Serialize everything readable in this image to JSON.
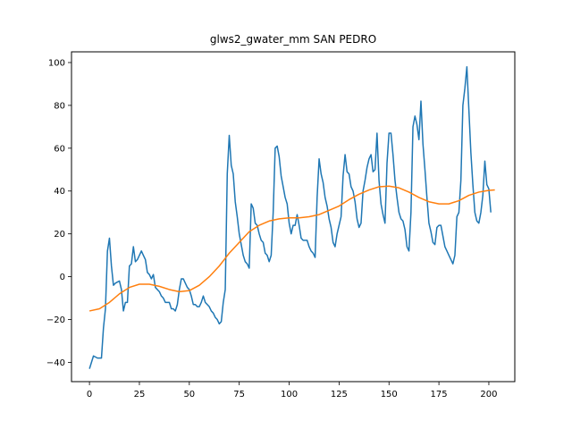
{
  "chart_data": {
    "type": "line",
    "title": "glws2_gwater_mm SAN PEDRO",
    "xlabel": "",
    "ylabel": "",
    "xlim": [
      -9,
      213
    ],
    "ylim": [
      -49,
      105
    ],
    "x_ticks": [
      0,
      25,
      50,
      75,
      100,
      125,
      150,
      175,
      200
    ],
    "y_ticks": [
      -40,
      -20,
      0,
      20,
      40,
      60,
      80,
      100
    ],
    "grid": false,
    "series": [
      {
        "color": "#1f77b4",
        "points": [
          [
            0,
            -43
          ],
          [
            2,
            -37
          ],
          [
            4,
            -38
          ],
          [
            6,
            -38
          ],
          [
            7,
            -24
          ],
          [
            8,
            -15
          ],
          [
            9,
            12
          ],
          [
            10,
            18
          ],
          [
            11,
            5
          ],
          [
            12,
            -4
          ],
          [
            13,
            -3
          ],
          [
            14,
            -2.5
          ],
          [
            15,
            -2
          ],
          [
            16,
            -6
          ],
          [
            17,
            -16
          ],
          [
            18,
            -12
          ],
          [
            19,
            -12
          ],
          [
            20,
            5
          ],
          [
            21,
            6
          ],
          [
            22,
            14
          ],
          [
            23,
            7
          ],
          [
            24,
            8
          ],
          [
            25,
            10
          ],
          [
            26,
            12
          ],
          [
            27,
            10
          ],
          [
            28,
            8
          ],
          [
            29,
            2
          ],
          [
            30,
            1
          ],
          [
            31,
            -1
          ],
          [
            32,
            1
          ],
          [
            33,
            -5
          ],
          [
            34,
            -6
          ],
          [
            35,
            -7
          ],
          [
            36,
            -9
          ],
          [
            37,
            -10
          ],
          [
            38,
            -12
          ],
          [
            39,
            -12
          ],
          [
            40,
            -12
          ],
          [
            41,
            -15
          ],
          [
            42,
            -15
          ],
          [
            43,
            -16
          ],
          [
            44,
            -13
          ],
          [
            45,
            -6
          ],
          [
            46,
            -1
          ],
          [
            47,
            -1
          ],
          [
            48,
            -3
          ],
          [
            49,
            -5
          ],
          [
            50,
            -6
          ],
          [
            51,
            -9
          ],
          [
            52,
            -13
          ],
          [
            53,
            -13
          ],
          [
            54,
            -14
          ],
          [
            55,
            -14
          ],
          [
            56,
            -12
          ],
          [
            57,
            -9
          ],
          [
            58,
            -12
          ],
          [
            59,
            -13
          ],
          [
            60,
            -14
          ],
          [
            61,
            -16
          ],
          [
            62,
            -17
          ],
          [
            63,
            -19
          ],
          [
            64,
            -20
          ],
          [
            65,
            -22
          ],
          [
            66,
            -21
          ],
          [
            67,
            -12
          ],
          [
            68,
            -6
          ],
          [
            69,
            48
          ],
          [
            70,
            66
          ],
          [
            71,
            52
          ],
          [
            72,
            48
          ],
          [
            73,
            35
          ],
          [
            74,
            28
          ],
          [
            75,
            20
          ],
          [
            76,
            15
          ],
          [
            77,
            10
          ],
          [
            78,
            7
          ],
          [
            79,
            6
          ],
          [
            80,
            4
          ],
          [
            81,
            34
          ],
          [
            82,
            32
          ],
          [
            83,
            25
          ],
          [
            84,
            24
          ],
          [
            85,
            20
          ],
          [
            86,
            17
          ],
          [
            87,
            16
          ],
          [
            88,
            11
          ],
          [
            89,
            10
          ],
          [
            90,
            7
          ],
          [
            91,
            10
          ],
          [
            92,
            30
          ],
          [
            93,
            60
          ],
          [
            94,
            61
          ],
          [
            95,
            56
          ],
          [
            96,
            47
          ],
          [
            97,
            42
          ],
          [
            98,
            37
          ],
          [
            99,
            34
          ],
          [
            100,
            25
          ],
          [
            101,
            20
          ],
          [
            102,
            24
          ],
          [
            103,
            24
          ],
          [
            104,
            29
          ],
          [
            105,
            24
          ],
          [
            106,
            18
          ],
          [
            107,
            17
          ],
          [
            108,
            17
          ],
          [
            109,
            17
          ],
          [
            110,
            14
          ],
          [
            111,
            12
          ],
          [
            112,
            11
          ],
          [
            113,
            9
          ],
          [
            114,
            37
          ],
          [
            115,
            55
          ],
          [
            116,
            48
          ],
          [
            117,
            44
          ],
          [
            118,
            37
          ],
          [
            119,
            33
          ],
          [
            120,
            27
          ],
          [
            121,
            23
          ],
          [
            122,
            16
          ],
          [
            123,
            14
          ],
          [
            124,
            20
          ],
          [
            125,
            24
          ],
          [
            126,
            28
          ],
          [
            127,
            47
          ],
          [
            128,
            57
          ],
          [
            129,
            49
          ],
          [
            130,
            48
          ],
          [
            131,
            42
          ],
          [
            132,
            40
          ],
          [
            133,
            35
          ],
          [
            134,
            27
          ],
          [
            135,
            23
          ],
          [
            136,
            25
          ],
          [
            137,
            40
          ],
          [
            138,
            45
          ],
          [
            139,
            51
          ],
          [
            140,
            55
          ],
          [
            141,
            57
          ],
          [
            142,
            49
          ],
          [
            143,
            50
          ],
          [
            144,
            67
          ],
          [
            145,
            45
          ],
          [
            146,
            34
          ],
          [
            147,
            29
          ],
          [
            148,
            25
          ],
          [
            149,
            53
          ],
          [
            150,
            67
          ],
          [
            151,
            67
          ],
          [
            152,
            57
          ],
          [
            153,
            45
          ],
          [
            154,
            37
          ],
          [
            155,
            30
          ],
          [
            156,
            27
          ],
          [
            157,
            26
          ],
          [
            158,
            22
          ],
          [
            159,
            14
          ],
          [
            160,
            12
          ],
          [
            161,
            30
          ],
          [
            162,
            70
          ],
          [
            163,
            75
          ],
          [
            164,
            71
          ],
          [
            165,
            64
          ],
          [
            166,
            82
          ],
          [
            167,
            62
          ],
          [
            168,
            50
          ],
          [
            169,
            37
          ],
          [
            170,
            25
          ],
          [
            171,
            21
          ],
          [
            172,
            16
          ],
          [
            173,
            15
          ],
          [
            174,
            23
          ],
          [
            175,
            24
          ],
          [
            176,
            24
          ],
          [
            177,
            19
          ],
          [
            178,
            14
          ],
          [
            179,
            12
          ],
          [
            180,
            10
          ],
          [
            181,
            8
          ],
          [
            182,
            6
          ],
          [
            183,
            10
          ],
          [
            184,
            28
          ],
          [
            185,
            30
          ],
          [
            186,
            45
          ],
          [
            187,
            80
          ],
          [
            188,
            88
          ],
          [
            189,
            98
          ],
          [
            190,
            78
          ],
          [
            191,
            58
          ],
          [
            192,
            43
          ],
          [
            193,
            30
          ],
          [
            194,
            26
          ],
          [
            195,
            25
          ],
          [
            196,
            30
          ],
          [
            197,
            38
          ],
          [
            198,
            54
          ],
          [
            199,
            43
          ],
          [
            200,
            41
          ],
          [
            201,
            30
          ]
        ]
      },
      {
        "color": "#ff7f0e",
        "points": [
          [
            0,
            -16
          ],
          [
            5,
            -15
          ],
          [
            10,
            -12
          ],
          [
            15,
            -8
          ],
          [
            20,
            -5
          ],
          [
            25,
            -3.5
          ],
          [
            30,
            -3.5
          ],
          [
            35,
            -4.5
          ],
          [
            40,
            -6
          ],
          [
            45,
            -7
          ],
          [
            50,
            -6.5
          ],
          [
            55,
            -4
          ],
          [
            60,
            0
          ],
          [
            65,
            5
          ],
          [
            70,
            11
          ],
          [
            75,
            16
          ],
          [
            80,
            21
          ],
          [
            85,
            24
          ],
          [
            90,
            26
          ],
          [
            95,
            27
          ],
          [
            100,
            27.5
          ],
          [
            105,
            27.5
          ],
          [
            110,
            28
          ],
          [
            115,
            29
          ],
          [
            120,
            31
          ],
          [
            125,
            33
          ],
          [
            130,
            36
          ],
          [
            135,
            38.5
          ],
          [
            140,
            40.5
          ],
          [
            145,
            42
          ],
          [
            150,
            42.3
          ],
          [
            155,
            41.5
          ],
          [
            160,
            39.5
          ],
          [
            165,
            37
          ],
          [
            170,
            35
          ],
          [
            175,
            34
          ],
          [
            180,
            34
          ],
          [
            185,
            35.5
          ],
          [
            190,
            38
          ],
          [
            195,
            39.5
          ],
          [
            200,
            40.3
          ],
          [
            203,
            40.5
          ]
        ]
      }
    ]
  }
}
